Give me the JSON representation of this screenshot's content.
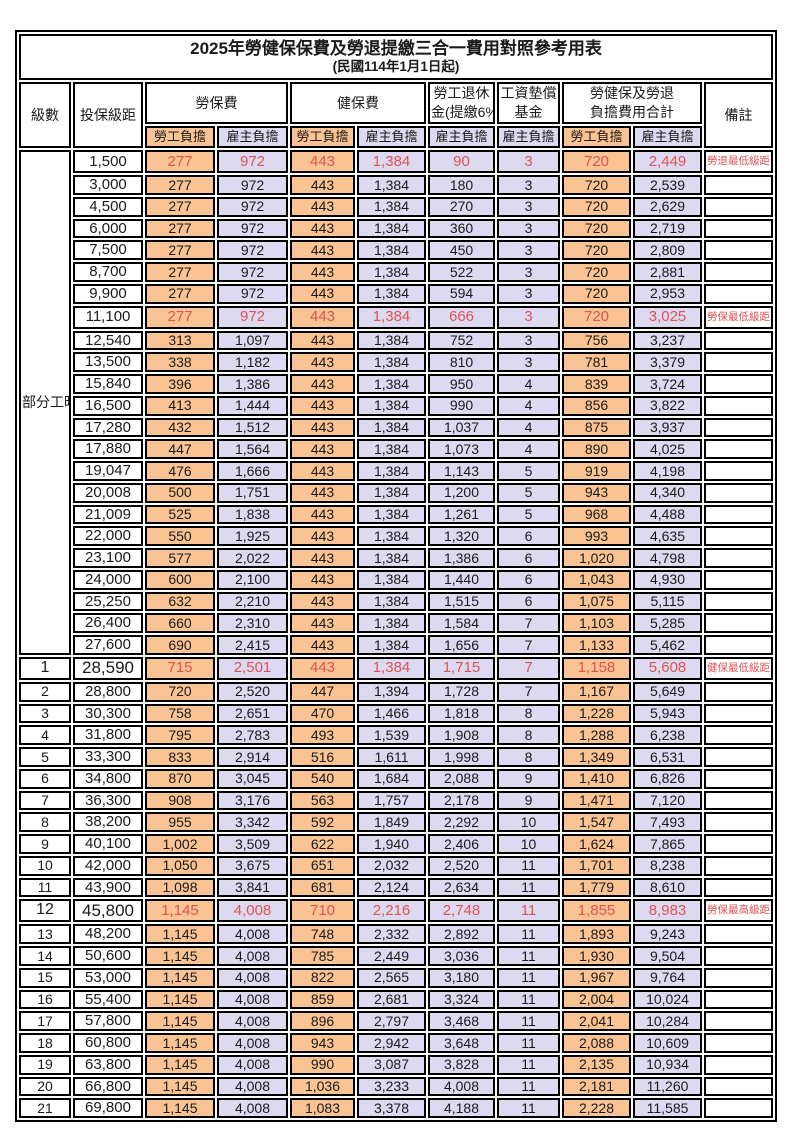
{
  "title": "2025年勞健保保費及勞退提繳三合一費用對照參考用表",
  "subtitle": "(民國114年1月1日起)",
  "header": {
    "level": "級數",
    "bracket": "投保級距",
    "labor_insurance": "勞保費",
    "health_insurance": "健保費",
    "pension_line1": "勞工退休",
    "pension_line2": "金(提繳6%)",
    "arrears_line1": "工資墊償",
    "arrears_line2": "基金",
    "total_line1": "勞健保及勞退",
    "total_line2": "負擔費用合計",
    "note": "備註",
    "employee": "勞工負擔",
    "employer": "雇主負擔"
  },
  "part_time": {
    "label": "部分工時",
    "rows": 23
  },
  "column_kinds": [
    "emp",
    "er",
    "emp",
    "er",
    "er",
    "er",
    "emp",
    "er"
  ],
  "column_names": [
    "labor-employee",
    "labor-employer",
    "health-employee",
    "health-employer",
    "pension-employer",
    "arrears-employer",
    "total-employee",
    "total-employer"
  ],
  "colors": {
    "employee_fill": "#fac393",
    "employer_fill": "#dcd9f0",
    "highlight_text": "#e05252",
    "border": "#000000"
  },
  "rows": [
    {
      "lv": "",
      "br": "1,500",
      "v": [
        "277",
        "972",
        "443",
        "1,384",
        "90",
        "3",
        "720",
        "2,449"
      ],
      "n": "勞退最低級距",
      "hl": true,
      "big": false
    },
    {
      "lv": "",
      "br": "3,000",
      "v": [
        "277",
        "972",
        "443",
        "1,384",
        "180",
        "3",
        "720",
        "2,539"
      ],
      "n": "",
      "hl": false,
      "big": false
    },
    {
      "lv": "",
      "br": "4,500",
      "v": [
        "277",
        "972",
        "443",
        "1,384",
        "270",
        "3",
        "720",
        "2,629"
      ],
      "n": "",
      "hl": false,
      "big": false
    },
    {
      "lv": "",
      "br": "6,000",
      "v": [
        "277",
        "972",
        "443",
        "1,384",
        "360",
        "3",
        "720",
        "2,719"
      ],
      "n": "",
      "hl": false,
      "big": false
    },
    {
      "lv": "",
      "br": "7,500",
      "v": [
        "277",
        "972",
        "443",
        "1,384",
        "450",
        "3",
        "720",
        "2,809"
      ],
      "n": "",
      "hl": false,
      "big": false
    },
    {
      "lv": "",
      "br": "8,700",
      "v": [
        "277",
        "972",
        "443",
        "1,384",
        "522",
        "3",
        "720",
        "2,881"
      ],
      "n": "",
      "hl": false,
      "big": false
    },
    {
      "lv": "",
      "br": "9,900",
      "v": [
        "277",
        "972",
        "443",
        "1,384",
        "594",
        "3",
        "720",
        "2,953"
      ],
      "n": "",
      "hl": false,
      "big": false
    },
    {
      "lv": "",
      "br": "11,100",
      "v": [
        "277",
        "972",
        "443",
        "1,384",
        "666",
        "3",
        "720",
        "3,025"
      ],
      "n": "勞保最低級距",
      "hl": true,
      "big": false
    },
    {
      "lv": "",
      "br": "12,540",
      "v": [
        "313",
        "1,097",
        "443",
        "1,384",
        "752",
        "3",
        "756",
        "3,237"
      ],
      "n": "",
      "hl": false,
      "big": false
    },
    {
      "lv": "",
      "br": "13,500",
      "v": [
        "338",
        "1,182",
        "443",
        "1,384",
        "810",
        "3",
        "781",
        "3,379"
      ],
      "n": "",
      "hl": false,
      "big": false
    },
    {
      "lv": "",
      "br": "15,840",
      "v": [
        "396",
        "1,386",
        "443",
        "1,384",
        "950",
        "4",
        "839",
        "3,724"
      ],
      "n": "",
      "hl": false,
      "big": false
    },
    {
      "lv": "",
      "br": "16,500",
      "v": [
        "413",
        "1,444",
        "443",
        "1,384",
        "990",
        "4",
        "856",
        "3,822"
      ],
      "n": "",
      "hl": false,
      "big": false
    },
    {
      "lv": "",
      "br": "17,280",
      "v": [
        "432",
        "1,512",
        "443",
        "1,384",
        "1,037",
        "4",
        "875",
        "3,937"
      ],
      "n": "",
      "hl": false,
      "big": false
    },
    {
      "lv": "",
      "br": "17,880",
      "v": [
        "447",
        "1,564",
        "443",
        "1,384",
        "1,073",
        "4",
        "890",
        "4,025"
      ],
      "n": "",
      "hl": false,
      "big": false
    },
    {
      "lv": "",
      "br": "19,047",
      "v": [
        "476",
        "1,666",
        "443",
        "1,384",
        "1,143",
        "5",
        "919",
        "4,198"
      ],
      "n": "",
      "hl": false,
      "big": false
    },
    {
      "lv": "",
      "br": "20,008",
      "v": [
        "500",
        "1,751",
        "443",
        "1,384",
        "1,200",
        "5",
        "943",
        "4,340"
      ],
      "n": "",
      "hl": false,
      "big": false
    },
    {
      "lv": "",
      "br": "21,009",
      "v": [
        "525",
        "1,838",
        "443",
        "1,384",
        "1,261",
        "5",
        "968",
        "4,488"
      ],
      "n": "",
      "hl": false,
      "big": false
    },
    {
      "lv": "",
      "br": "22,000",
      "v": [
        "550",
        "1,925",
        "443",
        "1,384",
        "1,320",
        "6",
        "993",
        "4,635"
      ],
      "n": "",
      "hl": false,
      "big": false
    },
    {
      "lv": "",
      "br": "23,100",
      "v": [
        "577",
        "2,022",
        "443",
        "1,384",
        "1,386",
        "6",
        "1,020",
        "4,798"
      ],
      "n": "",
      "hl": false,
      "big": false
    },
    {
      "lv": "",
      "br": "24,000",
      "v": [
        "600",
        "2,100",
        "443",
        "1,384",
        "1,440",
        "6",
        "1,043",
        "4,930"
      ],
      "n": "",
      "hl": false,
      "big": false
    },
    {
      "lv": "",
      "br": "25,250",
      "v": [
        "632",
        "2,210",
        "443",
        "1,384",
        "1,515",
        "6",
        "1,075",
        "5,115"
      ],
      "n": "",
      "hl": false,
      "big": false
    },
    {
      "lv": "",
      "br": "26,400",
      "v": [
        "660",
        "2,310",
        "443",
        "1,384",
        "1,584",
        "7",
        "1,103",
        "5,285"
      ],
      "n": "",
      "hl": false,
      "big": false
    },
    {
      "lv": "",
      "br": "27,600",
      "v": [
        "690",
        "2,415",
        "443",
        "1,384",
        "1,656",
        "7",
        "1,133",
        "5,462"
      ],
      "n": "",
      "hl": false,
      "big": false
    },
    {
      "lv": "1",
      "br": "28,590",
      "v": [
        "715",
        "2,501",
        "443",
        "1,384",
        "1,715",
        "7",
        "1,158",
        "5,608"
      ],
      "n": "健保最低級距",
      "hl": true,
      "big": true
    },
    {
      "lv": "2",
      "br": "28,800",
      "v": [
        "720",
        "2,520",
        "447",
        "1,394",
        "1,728",
        "7",
        "1,167",
        "5,649"
      ],
      "n": "",
      "hl": false,
      "big": false
    },
    {
      "lv": "3",
      "br": "30,300",
      "v": [
        "758",
        "2,651",
        "470",
        "1,466",
        "1,818",
        "8",
        "1,228",
        "5,943"
      ],
      "n": "",
      "hl": false,
      "big": false
    },
    {
      "lv": "4",
      "br": "31,800",
      "v": [
        "795",
        "2,783",
        "493",
        "1,539",
        "1,908",
        "8",
        "1,288",
        "6,238"
      ],
      "n": "",
      "hl": false,
      "big": false
    },
    {
      "lv": "5",
      "br": "33,300",
      "v": [
        "833",
        "2,914",
        "516",
        "1,611",
        "1,998",
        "8",
        "1,349",
        "6,531"
      ],
      "n": "",
      "hl": false,
      "big": false
    },
    {
      "lv": "6",
      "br": "34,800",
      "v": [
        "870",
        "3,045",
        "540",
        "1,684",
        "2,088",
        "9",
        "1,410",
        "6,826"
      ],
      "n": "",
      "hl": false,
      "big": false
    },
    {
      "lv": "7",
      "br": "36,300",
      "v": [
        "908",
        "3,176",
        "563",
        "1,757",
        "2,178",
        "9",
        "1,471",
        "7,120"
      ],
      "n": "",
      "hl": false,
      "big": false
    },
    {
      "lv": "8",
      "br": "38,200",
      "v": [
        "955",
        "3,342",
        "592",
        "1,849",
        "2,292",
        "10",
        "1,547",
        "7,493"
      ],
      "n": "",
      "hl": false,
      "big": false
    },
    {
      "lv": "9",
      "br": "40,100",
      "v": [
        "1,002",
        "3,509",
        "622",
        "1,940",
        "2,406",
        "10",
        "1,624",
        "7,865"
      ],
      "n": "",
      "hl": false,
      "big": false
    },
    {
      "lv": "10",
      "br": "42,000",
      "v": [
        "1,050",
        "3,675",
        "651",
        "2,032",
        "2,520",
        "11",
        "1,701",
        "8,238"
      ],
      "n": "",
      "hl": false,
      "big": false
    },
    {
      "lv": "11",
      "br": "43,900",
      "v": [
        "1,098",
        "3,841",
        "681",
        "2,124",
        "2,634",
        "11",
        "1,779",
        "8,610"
      ],
      "n": "",
      "hl": false,
      "big": false
    },
    {
      "lv": "12",
      "br": "45,800",
      "v": [
        "1,145",
        "4,008",
        "710",
        "2,216",
        "2,748",
        "11",
        "1,855",
        "8,983"
      ],
      "n": "勞保最高級距",
      "hl": true,
      "big": true
    },
    {
      "lv": "13",
      "br": "48,200",
      "v": [
        "1,145",
        "4,008",
        "748",
        "2,332",
        "2,892",
        "11",
        "1,893",
        "9,243"
      ],
      "n": "",
      "hl": false,
      "big": false
    },
    {
      "lv": "14",
      "br": "50,600",
      "v": [
        "1,145",
        "4,008",
        "785",
        "2,449",
        "3,036",
        "11",
        "1,930",
        "9,504"
      ],
      "n": "",
      "hl": false,
      "big": false
    },
    {
      "lv": "15",
      "br": "53,000",
      "v": [
        "1,145",
        "4,008",
        "822",
        "2,565",
        "3,180",
        "11",
        "1,967",
        "9,764"
      ],
      "n": "",
      "hl": false,
      "big": false
    },
    {
      "lv": "16",
      "br": "55,400",
      "v": [
        "1,145",
        "4,008",
        "859",
        "2,681",
        "3,324",
        "11",
        "2,004",
        "10,024"
      ],
      "n": "",
      "hl": false,
      "big": false
    },
    {
      "lv": "17",
      "br": "57,800",
      "v": [
        "1,145",
        "4,008",
        "896",
        "2,797",
        "3,468",
        "11",
        "2,041",
        "10,284"
      ],
      "n": "",
      "hl": false,
      "big": false
    },
    {
      "lv": "18",
      "br": "60,800",
      "v": [
        "1,145",
        "4,008",
        "943",
        "2,942",
        "3,648",
        "11",
        "2,088",
        "10,609"
      ],
      "n": "",
      "hl": false,
      "big": false
    },
    {
      "lv": "19",
      "br": "63,800",
      "v": [
        "1,145",
        "4,008",
        "990",
        "3,087",
        "3,828",
        "11",
        "2,135",
        "10,934"
      ],
      "n": "",
      "hl": false,
      "big": false
    },
    {
      "lv": "20",
      "br": "66,800",
      "v": [
        "1,145",
        "4,008",
        "1,036",
        "3,233",
        "4,008",
        "11",
        "2,181",
        "11,260"
      ],
      "n": "",
      "hl": false,
      "big": false
    },
    {
      "lv": "21",
      "br": "69,800",
      "v": [
        "1,145",
        "4,008",
        "1,083",
        "3,378",
        "4,188",
        "11",
        "2,228",
        "11,585"
      ],
      "n": "",
      "hl": false,
      "big": false
    }
  ]
}
